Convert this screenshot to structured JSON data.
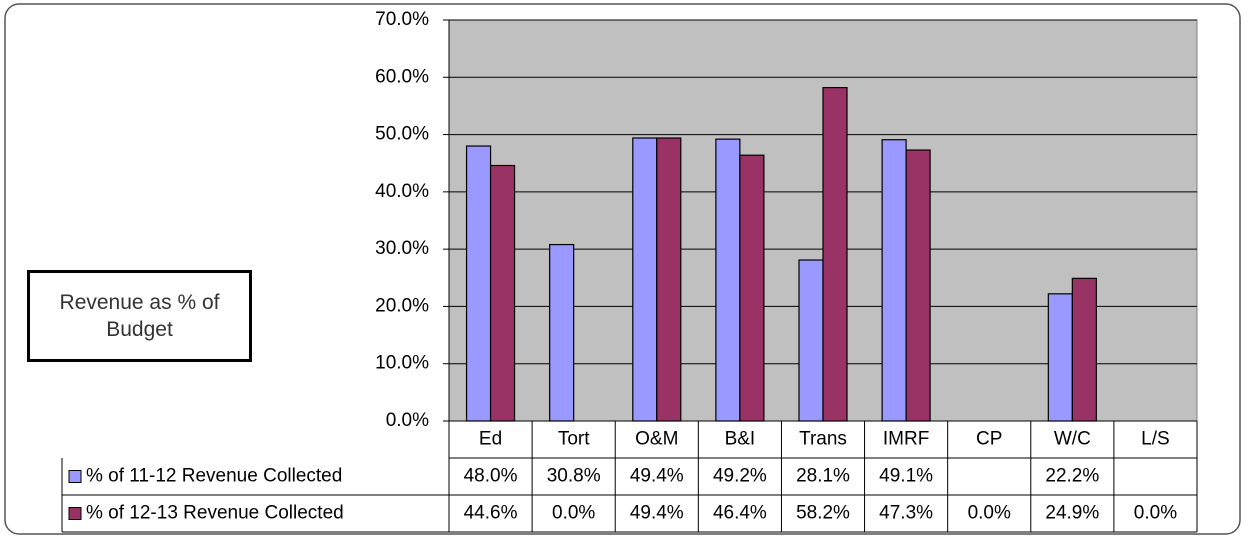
{
  "chart_data": {
    "type": "bar",
    "annotation": "Revenue as % of Budget",
    "categories": [
      "Ed",
      "Tort",
      "O&M",
      "B&I",
      "Trans",
      "IMRF",
      "CP",
      "W/C",
      "L/S"
    ],
    "series": [
      {
        "name": "% of 11-12 Revenue Collected",
        "color": "#9999ff",
        "values": [
          48.0,
          30.8,
          49.4,
          49.2,
          28.1,
          49.1,
          null,
          22.2,
          null
        ],
        "value_labels": [
          "48.0%",
          "30.8%",
          "49.4%",
          "49.2%",
          "28.1%",
          "49.1%",
          null,
          "22.2%",
          null
        ]
      },
      {
        "name": "% of 12-13 Revenue Collected",
        "color": "#993366",
        "values": [
          44.6,
          0.0,
          49.4,
          46.4,
          58.2,
          47.3,
          0.0,
          24.9,
          0.0
        ],
        "value_labels": [
          "44.6%",
          "0.0%",
          "49.4%",
          "46.4%",
          "58.2%",
          "47.3%",
          "0.0%",
          "24.9%",
          "0.0%"
        ]
      }
    ],
    "ylim": [
      0,
      70
    ],
    "yticks": [
      {
        "value": 0,
        "label": "0.0%"
      },
      {
        "value": 10,
        "label": "10.0%"
      },
      {
        "value": 20,
        "label": "20.0%"
      },
      {
        "value": 30,
        "label": "30.0%"
      },
      {
        "value": 40,
        "label": "40.0%"
      },
      {
        "value": 50,
        "label": "50.0%"
      },
      {
        "value": 60,
        "label": "60.0%"
      },
      {
        "value": 70,
        "label": "70.0%"
      }
    ],
    "grid": true,
    "plot_background": "#c0c0c0"
  }
}
